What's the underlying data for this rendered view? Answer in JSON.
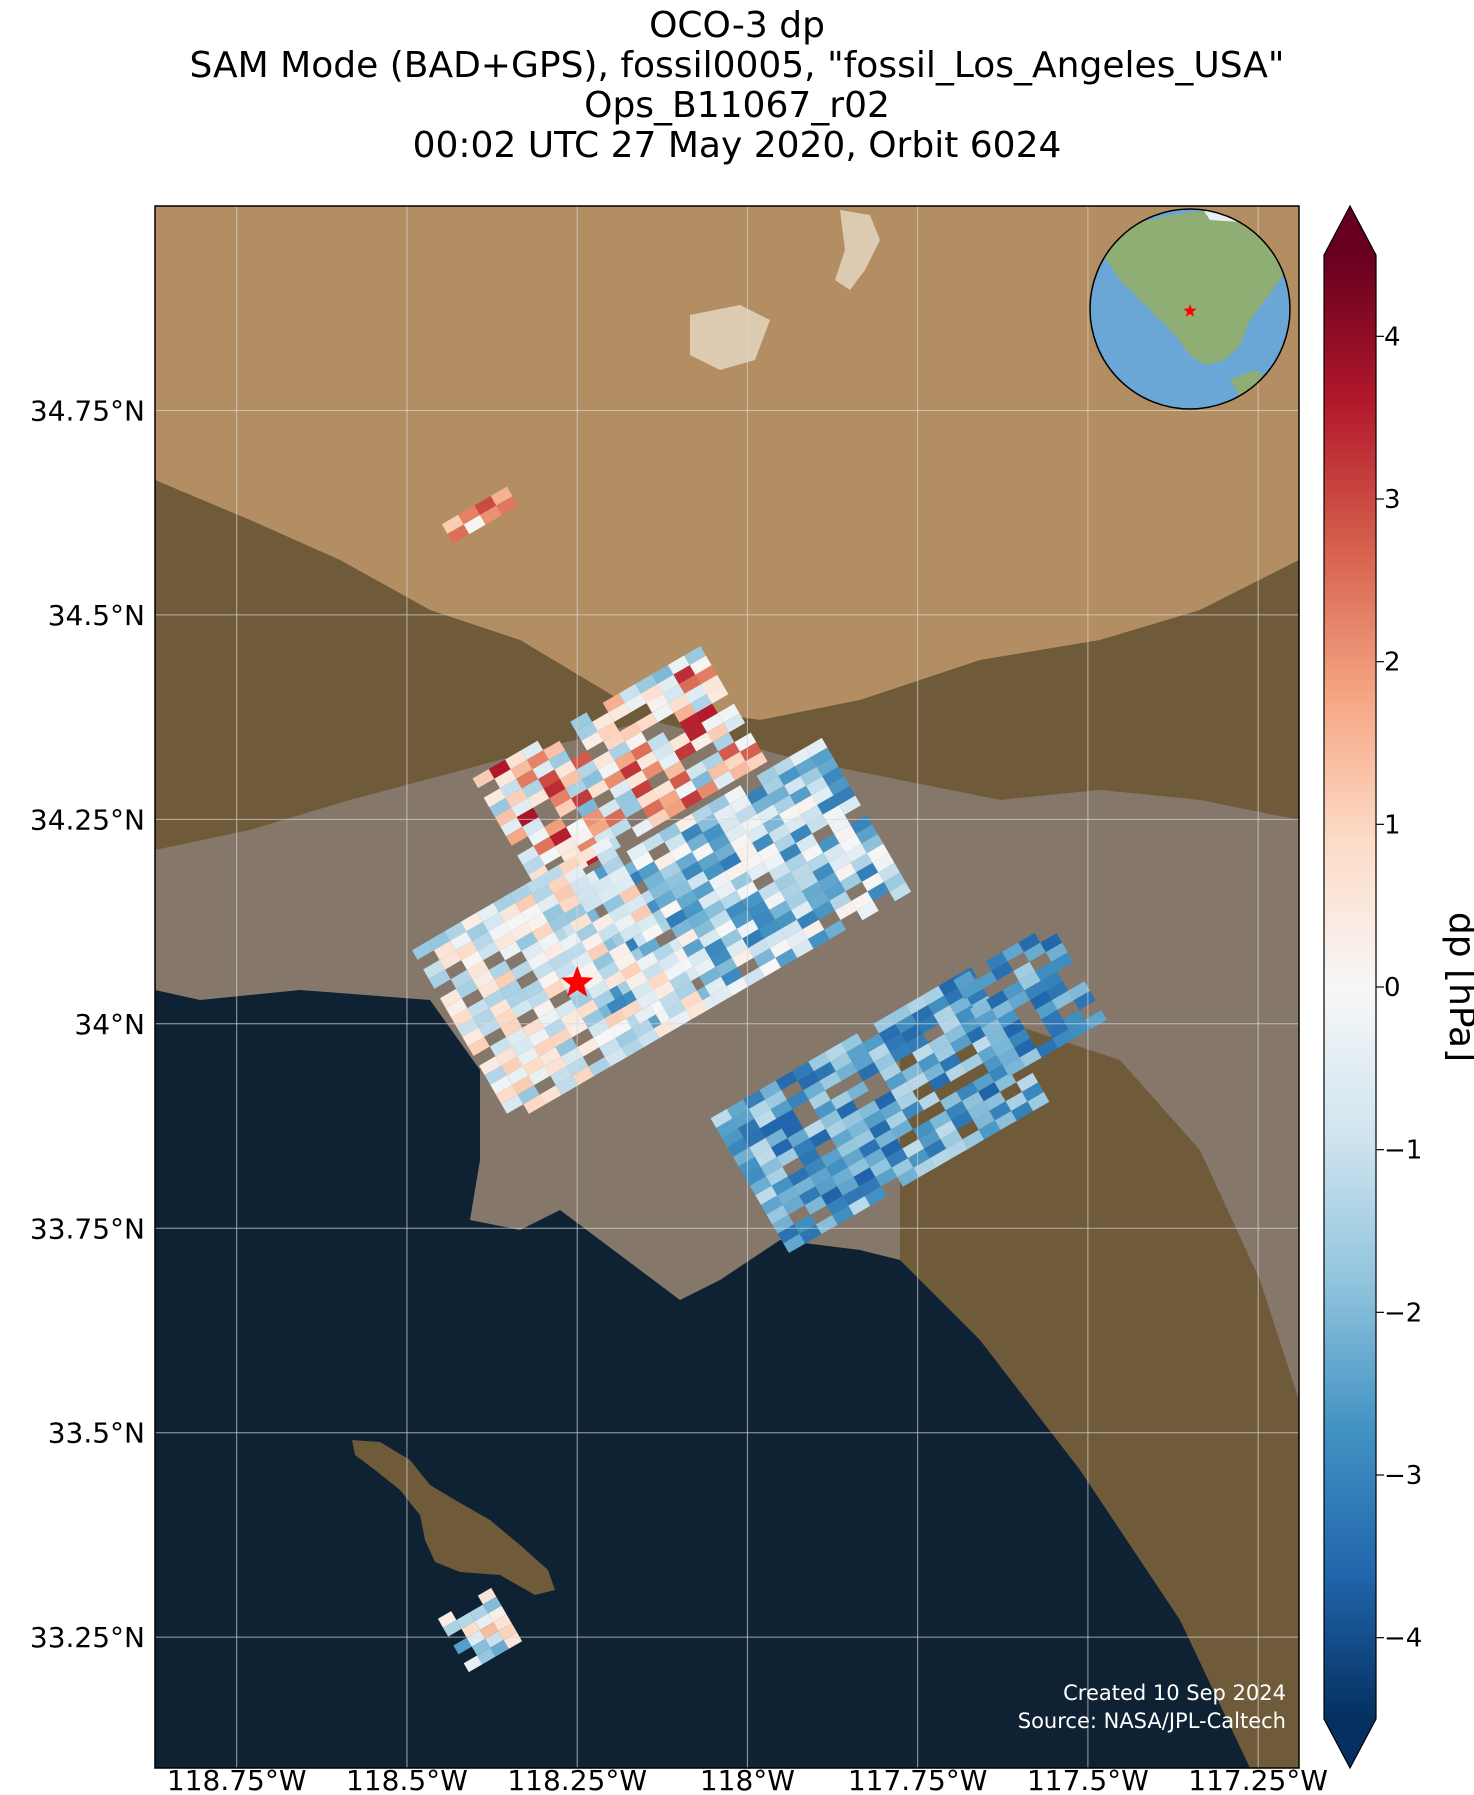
{
  "title": {
    "line1": "OCO-3 dp",
    "line2": "SAM Mode (BAD+GPS), fossil0005, \"fossil_Los_Angeles_USA\"",
    "line3": "Ops_B11067_r02",
    "line4": "00:02 UTC 27 May 2020, Orbit 6024"
  },
  "map": {
    "lon_range": [
      -118.87,
      -117.19
    ],
    "lat_range": [
      33.09,
      35.0
    ],
    "lat_ticks": [
      {
        "value": 34.75,
        "label": "34.75°N"
      },
      {
        "value": 34.5,
        "label": "34.5°N"
      },
      {
        "value": 34.25,
        "label": "34.25°N"
      },
      {
        "value": 34.0,
        "label": "34°N"
      },
      {
        "value": 33.75,
        "label": "33.75°N"
      },
      {
        "value": 33.5,
        "label": "33.5°N"
      },
      {
        "value": 33.25,
        "label": "33.25°N"
      }
    ],
    "lon_ticks": [
      {
        "value": -118.75,
        "label": "118.75°W"
      },
      {
        "value": -118.5,
        "label": "118.5°W"
      },
      {
        "value": -118.25,
        "label": "118.25°W"
      },
      {
        "value": -118.0,
        "label": "118°W"
      },
      {
        "value": -117.75,
        "label": "117.75°W"
      },
      {
        "value": -117.5,
        "label": "117.5°W"
      },
      {
        "value": -117.25,
        "label": "117.25°W"
      }
    ],
    "target": {
      "lon": -118.25,
      "lat": 34.05
    },
    "colors": {
      "ocean": "#0f2233",
      "desert": "#b38e63",
      "mountain": "#6f5a3a",
      "basin": "#85786a",
      "grid": "#d9d9d9",
      "target_star": "#ff0000"
    }
  },
  "colorbar": {
    "label": "dp [hPa]",
    "vmin": -4.5,
    "vmax": 4.5,
    "ticks": [
      {
        "value": 4,
        "label": "4"
      },
      {
        "value": 3,
        "label": "3"
      },
      {
        "value": 2,
        "label": "2"
      },
      {
        "value": 1,
        "label": "1"
      },
      {
        "value": 0,
        "label": "0"
      },
      {
        "value": -1,
        "label": "−1"
      },
      {
        "value": -2,
        "label": "−2"
      },
      {
        "value": -3,
        "label": "−3"
      },
      {
        "value": -4,
        "label": "−4"
      }
    ],
    "stops": [
      "#053061",
      "#2166ac",
      "#4393c3",
      "#92c5de",
      "#d1e5f0",
      "#f7f7f7",
      "#fddbc7",
      "#f4a582",
      "#d6604d",
      "#b2182b",
      "#67001f"
    ]
  },
  "footer": {
    "created": "Created 10 Sep 2024",
    "source": "Source: NASA/JPL-Caltech"
  },
  "inset_globe": {
    "colors": {
      "ocean": "#6aa6d6",
      "land": "#8fae74"
    }
  }
}
